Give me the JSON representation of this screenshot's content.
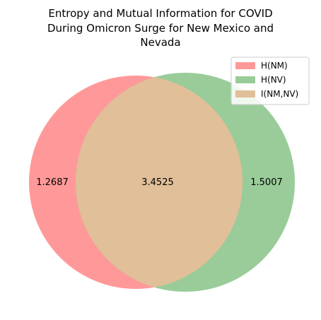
{
  "chart_data": {
    "type": "venn",
    "title": [
      "Entropy and Mutual Information for COVID",
      "During Omicron Surge for New Mexico and",
      "Nevada"
    ],
    "sets": [
      {
        "name": "H(NM)",
        "only_value": "1.2687",
        "color": "#ff9999"
      },
      {
        "name": "H(NV)",
        "only_value": "1.5007",
        "color": "#99cc99"
      }
    ],
    "intersection": {
      "name": "I(NM,NV)",
      "value": "3.4525",
      "color": "#e0bf99"
    },
    "legend": {
      "placement": "top-right",
      "entries": [
        {
          "label": "H(NM)",
          "color": "#ff9999"
        },
        {
          "label": "H(NV)",
          "color": "#99cc99"
        },
        {
          "label": "I(NM,NV)",
          "color": "#e0bf99"
        }
      ]
    }
  }
}
